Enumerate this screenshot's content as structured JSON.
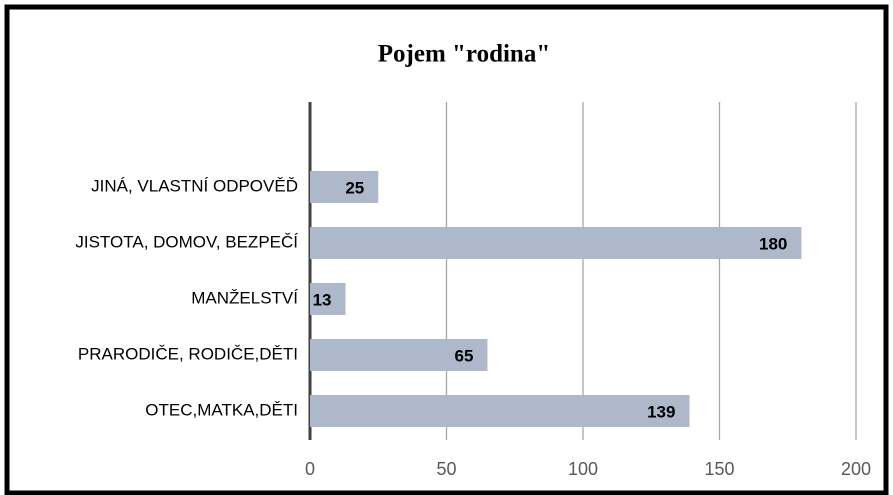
{
  "chart_data": {
    "type": "barh",
    "title": "Pojem \"rodina\"",
    "categories": [
      "JINÁ, VLASTNÍ ODPOVĚĎ",
      "JISTOTA, DOMOV, BEZPEČÍ",
      "MANŽELSTVÍ",
      "PRARODIČE, RODIČE,DĚTI",
      "OTEC,MATKA,DĚTI"
    ],
    "values": [
      25,
      180,
      13,
      65,
      139
    ],
    "color": "#adb9ca",
    "xlim": [
      0,
      200
    ],
    "xticks": [
      0,
      50,
      100,
      150,
      200
    ],
    "grid": true
  }
}
